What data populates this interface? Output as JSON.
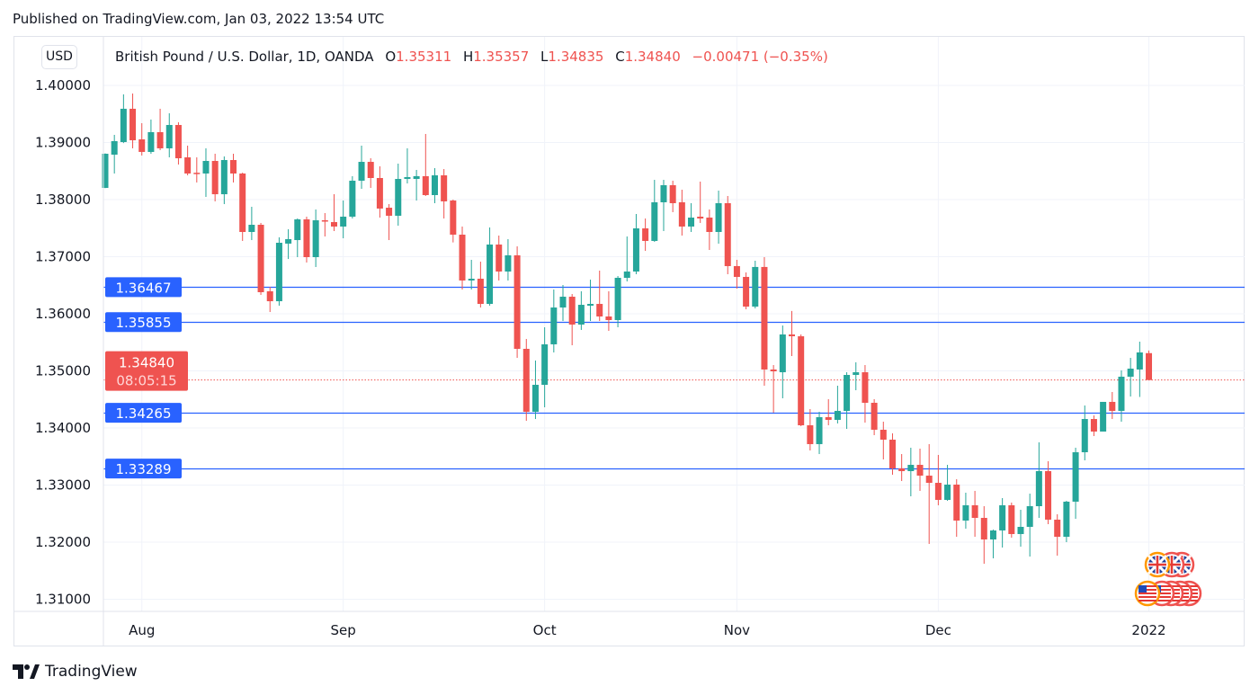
{
  "header": {
    "published": "Published on TradingView.com, Jan 03, 2022 13:54 UTC"
  },
  "toolbar": {
    "currency_button": "USD"
  },
  "legend": {
    "symbol": "British Pound / U.S. Dollar, 1D, OANDA",
    "o_label": "O",
    "o_value": "1.35311",
    "h_label": "H",
    "h_value": "1.35357",
    "l_label": "L",
    "l_value": "1.34835",
    "c_label": "C",
    "c_value": "1.34840",
    "change": "−0.00471 (−0.35%)"
  },
  "footer": {
    "brand": "TradingView"
  },
  "colors": {
    "up": "#26a69a",
    "down": "#ef5350",
    "level_line": "#2962ff",
    "grid": "#f0f3fa"
  },
  "chart_data": {
    "type": "candlestick",
    "title": "",
    "y_axis_position": "left",
    "ylim": [
      1.3082,
      1.4072
    ],
    "grid": true,
    "y_ticks": [
      "1.40000",
      "1.39000",
      "1.38000",
      "1.37000",
      "1.36000",
      "1.35000",
      "1.34000",
      "1.33000",
      "1.32000",
      "1.31000"
    ],
    "x_ticks": [
      {
        "label": "Aug",
        "date": "2021-08-02"
      },
      {
        "label": "Sep",
        "date": "2021-09-01"
      },
      {
        "label": "Oct",
        "date": "2021-10-01"
      },
      {
        "label": "Nov",
        "date": "2021-11-01"
      },
      {
        "label": "Dec",
        "date": "2021-12-01"
      },
      {
        "label": "2022",
        "date": "2022-01-03"
      }
    ],
    "horizontal_levels": [
      "1.36467",
      "1.35855",
      "1.34265",
      "1.33289"
    ],
    "last_price": {
      "value": "1.34840",
      "countdown": "08:05:15"
    },
    "candles_columns": [
      "date",
      "open",
      "high",
      "low",
      "close"
    ],
    "candles": [
      [
        "2021-07-27",
        1.38205,
        1.3881,
        1.382,
        1.38803
      ],
      [
        "2021-07-28",
        1.38787,
        1.39134,
        1.38457,
        1.39024
      ],
      [
        "2021-07-29",
        1.39008,
        1.39843,
        1.3899,
        1.39591
      ],
      [
        "2021-07-30",
        1.39591,
        1.39858,
        1.38898,
        1.39039
      ],
      [
        "2021-08-02",
        1.39055,
        1.39339,
        1.38772,
        1.38835
      ],
      [
        "2021-08-03",
        1.38835,
        1.39402,
        1.38803,
        1.39181
      ],
      [
        "2021-08-04",
        1.39181,
        1.39591,
        1.38866,
        1.38898
      ],
      [
        "2021-08-05",
        1.38898,
        1.39512,
        1.3874,
        1.39307
      ],
      [
        "2021-08-06",
        1.39307,
        1.39354,
        1.38614,
        1.38724
      ],
      [
        "2021-08-09",
        1.3874,
        1.38945,
        1.38425,
        1.38457
      ],
      [
        "2021-08-10",
        1.3847,
        1.3874,
        1.383,
        1.38457
      ],
      [
        "2021-08-11",
        1.38457,
        1.38898,
        1.38047,
        1.38677
      ],
      [
        "2021-08-12",
        1.38677,
        1.38803,
        1.37969,
        1.38094
      ],
      [
        "2021-08-13",
        1.38094,
        1.38756,
        1.37921,
        1.38693
      ],
      [
        "2021-08-16",
        1.38693,
        1.38803,
        1.383,
        1.38457
      ],
      [
        "2021-08-17",
        1.38457,
        1.38472,
        1.37276,
        1.37433
      ],
      [
        "2021-08-18",
        1.37433,
        1.37874,
        1.37291,
        1.37559
      ],
      [
        "2021-08-19",
        1.37559,
        1.37591,
        1.36331,
        1.36378
      ],
      [
        "2021-08-20",
        1.36394,
        1.36472,
        1.36031,
        1.3622
      ],
      [
        "2021-08-23",
        1.3622,
        1.37339,
        1.36142,
        1.37244
      ],
      [
        "2021-08-24",
        1.37229,
        1.37481,
        1.3696,
        1.37307
      ],
      [
        "2021-08-25",
        1.37291,
        1.3767,
        1.36992,
        1.37654
      ],
      [
        "2021-08-26",
        1.37654,
        1.37701,
        1.36898,
        1.36992
      ],
      [
        "2021-08-27",
        1.36992,
        1.37827,
        1.36819,
        1.37638
      ],
      [
        "2021-08-30",
        1.37638,
        1.37764,
        1.37354,
        1.37622
      ],
      [
        "2021-08-31",
        1.37606,
        1.38094,
        1.37449,
        1.37528
      ],
      [
        "2021-09-01",
        1.37528,
        1.37984,
        1.37323,
        1.37701
      ],
      [
        "2021-09-02",
        1.37701,
        1.3841,
        1.3767,
        1.38331
      ],
      [
        "2021-09-03",
        1.38331,
        1.38945,
        1.38189,
        1.38661
      ],
      [
        "2021-09-06",
        1.38661,
        1.38724,
        1.38205,
        1.38378
      ],
      [
        "2021-09-07",
        1.38378,
        1.38583,
        1.37685,
        1.37843
      ],
      [
        "2021-09-08",
        1.37858,
        1.37921,
        1.37291,
        1.37717
      ],
      [
        "2021-09-09",
        1.37717,
        1.3863,
        1.37543,
        1.38362
      ],
      [
        "2021-09-10",
        1.38362,
        1.38898,
        1.38283,
        1.38394
      ],
      [
        "2021-09-13",
        1.38362,
        1.3852,
        1.37984,
        1.3841
      ],
      [
        "2021-09-14",
        1.3841,
        1.3915,
        1.38063,
        1.38079
      ],
      [
        "2021-09-15",
        1.38079,
        1.38551,
        1.37937,
        1.38425
      ],
      [
        "2021-09-16",
        1.38425,
        1.38535,
        1.37669,
        1.37969
      ],
      [
        "2021-09-17",
        1.37984,
        1.38,
        1.3725,
        1.37386
      ],
      [
        "2021-09-20",
        1.37386,
        1.37528,
        1.36425,
        1.36583
      ],
      [
        "2021-09-21",
        1.36583,
        1.36945,
        1.36425,
        1.36614
      ],
      [
        "2021-09-22",
        1.36614,
        1.36913,
        1.3611,
        1.36173
      ],
      [
        "2021-09-23",
        1.36173,
        1.37512,
        1.36142,
        1.37213
      ],
      [
        "2021-09-24",
        1.37213,
        1.3737,
        1.36583,
        1.3674
      ],
      [
        "2021-09-27",
        1.3674,
        1.37307,
        1.36583,
        1.37024
      ],
      [
        "2021-09-28",
        1.37024,
        1.37181,
        1.35228,
        1.35386
      ],
      [
        "2021-09-29",
        1.35386,
        1.35559,
        1.34126,
        1.34283
      ],
      [
        "2021-09-30",
        1.34283,
        1.35181,
        1.34157,
        1.34756
      ],
      [
        "2021-10-01",
        1.34756,
        1.35764,
        1.34362,
        1.35465
      ],
      [
        "2021-10-04",
        1.35465,
        1.36425,
        1.35323,
        1.3611
      ],
      [
        "2021-10-05",
        1.3611,
        1.36504,
        1.35874,
        1.36299
      ],
      [
        "2021-10-06",
        1.36299,
        1.36346,
        1.35449,
        1.35811
      ],
      [
        "2021-10-07",
        1.35811,
        1.36394,
        1.35717,
        1.36157
      ],
      [
        "2021-10-08",
        1.36142,
        1.36598,
        1.35874,
        1.36173
      ],
      [
        "2021-10-11",
        1.36173,
        1.36756,
        1.35874,
        1.35953
      ],
      [
        "2021-10-12",
        1.35953,
        1.36394,
        1.35701,
        1.3589
      ],
      [
        "2021-10-13",
        1.3589,
        1.36661,
        1.35764,
        1.3663
      ],
      [
        "2021-10-14",
        1.3663,
        1.37354,
        1.36567,
        1.3674
      ],
      [
        "2021-10-15",
        1.3674,
        1.37748,
        1.36693,
        1.37496
      ],
      [
        "2021-10-18",
        1.37496,
        1.37669,
        1.37102,
        1.37276
      ],
      [
        "2021-10-19",
        1.37276,
        1.38346,
        1.3726,
        1.37953
      ],
      [
        "2021-10-20",
        1.37953,
        1.38346,
        1.37449,
        1.38252
      ],
      [
        "2021-10-21",
        1.38252,
        1.38331,
        1.3778,
        1.37937
      ],
      [
        "2021-10-22",
        1.37953,
        1.38173,
        1.3737,
        1.37528
      ],
      [
        "2021-10-25",
        1.37528,
        1.37937,
        1.37433,
        1.37685
      ],
      [
        "2021-10-26",
        1.37701,
        1.38315,
        1.37591,
        1.37669
      ],
      [
        "2021-10-27",
        1.37685,
        1.37827,
        1.37118,
        1.37433
      ],
      [
        "2021-10-28",
        1.37433,
        1.38157,
        1.37228,
        1.37937
      ],
      [
        "2021-10-29",
        1.37937,
        1.38063,
        1.36693,
        1.36835
      ],
      [
        "2021-11-01",
        1.36835,
        1.36945,
        1.36441,
        1.36646
      ],
      [
        "2021-11-02",
        1.36646,
        1.36724,
        1.36079,
        1.36126
      ],
      [
        "2021-11-03",
        1.36126,
        1.36929,
        1.36094,
        1.3682
      ],
      [
        "2021-11-04",
        1.3682,
        1.36992,
        1.3474,
        1.35024
      ],
      [
        "2021-11-05",
        1.35024,
        1.35102,
        1.34268,
        1.34992
      ],
      [
        "2021-11-08",
        1.34976,
        1.35795,
        1.3452,
        1.35638
      ],
      [
        "2021-11-09",
        1.35638,
        1.3605,
        1.3526,
        1.35606
      ],
      [
        "2021-11-10",
        1.35606,
        1.35638,
        1.34031,
        1.34047
      ],
      [
        "2021-11-11",
        1.34047,
        1.34331,
        1.33606,
        1.33717
      ],
      [
        "2021-11-12",
        1.33717,
        1.34283,
        1.33543,
        1.34189
      ],
      [
        "2021-11-15",
        1.34189,
        1.34504,
        1.34047,
        1.34142
      ],
      [
        "2021-11-16",
        1.34142,
        1.3474,
        1.34079,
        1.34299
      ],
      [
        "2021-11-17",
        1.34299,
        1.34976,
        1.33984,
        1.34929
      ],
      [
        "2021-11-18",
        1.34929,
        1.3515,
        1.34661,
        1.34976
      ],
      [
        "2021-11-19",
        1.34976,
        1.35102,
        1.34094,
        1.34441
      ],
      [
        "2021-11-22",
        1.34441,
        1.34504,
        1.33874,
        1.33969
      ],
      [
        "2021-11-23",
        1.33969,
        1.3411,
        1.33449,
        1.33795
      ],
      [
        "2021-11-24",
        1.33795,
        1.33906,
        1.33181,
        1.33291
      ],
      [
        "2021-11-25",
        1.33291,
        1.33543,
        1.33071,
        1.33244
      ],
      [
        "2021-11-26",
        1.33244,
        1.33654,
        1.32803,
        1.33354
      ],
      [
        "2021-11-29",
        1.33354,
        1.33638,
        1.32898,
        1.33165
      ],
      [
        "2021-11-30",
        1.33165,
        1.33717,
        1.31969,
        1.33039
      ],
      [
        "2021-12-01",
        1.33039,
        1.33528,
        1.32646,
        1.3274
      ],
      [
        "2021-12-02",
        1.3274,
        1.33354,
        1.32724,
        1.33008
      ],
      [
        "2021-12-03",
        1.33008,
        1.33102,
        1.32094,
        1.32378
      ],
      [
        "2021-12-06",
        1.32378,
        1.32866,
        1.32236,
        1.32646
      ],
      [
        "2021-12-07",
        1.32646,
        1.32898,
        1.32094,
        1.32425
      ],
      [
        "2021-12-08",
        1.32425,
        1.3263,
        1.31622,
        1.32047
      ],
      [
        "2021-12-09",
        1.32047,
        1.3222,
        1.31717,
        1.32205
      ],
      [
        "2021-12-10",
        1.32205,
        1.32772,
        1.31906,
        1.32646
      ],
      [
        "2021-12-13",
        1.32646,
        1.32693,
        1.32079,
        1.32142
      ],
      [
        "2021-12-14",
        1.32142,
        1.32567,
        1.31921,
        1.32268
      ],
      [
        "2021-12-15",
        1.32268,
        1.3285,
        1.31748,
        1.3263
      ],
      [
        "2021-12-16",
        1.3263,
        1.33748,
        1.32425,
        1.33244
      ],
      [
        "2021-12-17",
        1.33244,
        1.33417,
        1.32315,
        1.32394
      ],
      [
        "2021-12-20",
        1.32394,
        1.32488,
        1.31764,
        1.32094
      ],
      [
        "2021-12-21",
        1.32094,
        1.32724,
        1.32,
        1.32709
      ],
      [
        "2021-12-22",
        1.32709,
        1.33654,
        1.32409,
        1.33575
      ],
      [
        "2021-12-23",
        1.33575,
        1.34394,
        1.33433,
        1.34157
      ],
      [
        "2021-12-24",
        1.34157,
        1.3422,
        1.33858,
        1.33937
      ],
      [
        "2021-12-27",
        1.33937,
        1.34457,
        1.33937,
        1.34457
      ],
      [
        "2021-12-28",
        1.34457,
        1.3463,
        1.34157,
        1.34299
      ],
      [
        "2021-12-29",
        1.34299,
        1.35008,
        1.3411,
        1.34898
      ],
      [
        "2021-12-30",
        1.34898,
        1.35228,
        1.34551,
        1.35039
      ],
      [
        "2021-12-31",
        1.35024,
        1.35512,
        1.34543,
        1.35323
      ],
      [
        "2022-01-03",
        1.35311,
        1.35357,
        1.34835,
        1.3484
      ]
    ]
  }
}
